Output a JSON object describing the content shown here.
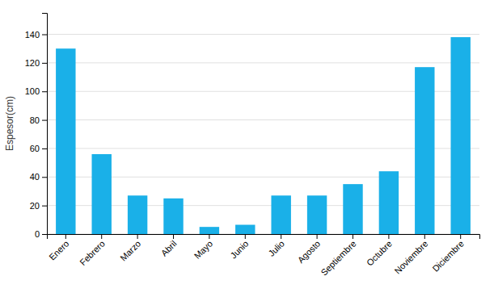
{
  "chart_data": {
    "type": "bar",
    "categories": [
      "Enero",
      "Febrero",
      "Marzo",
      "Abril",
      "Mayo",
      "Junio",
      "Julio",
      "Agosto",
      "Septiembre",
      "Octubre",
      "Noviembre",
      "Diciembre"
    ],
    "values": [
      130,
      56,
      27,
      25,
      5,
      6.5,
      27,
      27,
      35,
      44,
      117,
      138
    ],
    "color": "#1ab0e8",
    "ylabel": "Espesor(cm)",
    "ylim": [
      0,
      155
    ],
    "yticks": [
      0,
      20,
      40,
      60,
      80,
      100,
      120,
      140
    ],
    "grid": true
  }
}
